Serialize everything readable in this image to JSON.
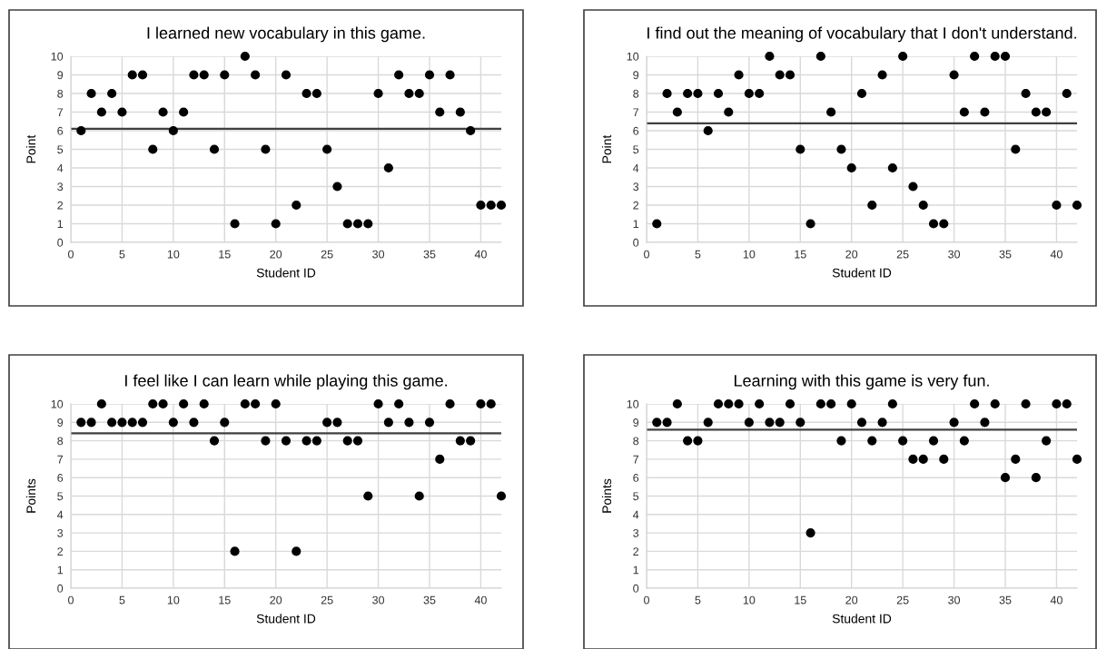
{
  "chart_data": [
    {
      "type": "scatter",
      "title": "I learned new vocabulary in this game.",
      "xlabel": "Student ID",
      "ylabel": "Point",
      "x": [
        1,
        2,
        3,
        4,
        5,
        6,
        7,
        8,
        9,
        10,
        11,
        12,
        13,
        14,
        15,
        16,
        17,
        18,
        19,
        20,
        21,
        22,
        23,
        24,
        25,
        26,
        27,
        28,
        29,
        30,
        31,
        32,
        33,
        34,
        35,
        36,
        37,
        38,
        39,
        40,
        41,
        42
      ],
      "series": [
        {
          "color": "#000000",
          "values": [
            6,
            8,
            7,
            8,
            7,
            9,
            9,
            5,
            7,
            6,
            7,
            9,
            9,
            5,
            9,
            1,
            10,
            9,
            5,
            1,
            9,
            2,
            8,
            8,
            5,
            3,
            1,
            1,
            1,
            8,
            4,
            9,
            8,
            8,
            9,
            7,
            9,
            7,
            6,
            2,
            2,
            2
          ]
        }
      ],
      "ref_lines": [
        {
          "axis": "y",
          "value": 6.1,
          "color": "#404040"
        }
      ],
      "xlim": [
        0,
        42
      ],
      "xticks": [
        0,
        5,
        10,
        15,
        20,
        25,
        30,
        35,
        40
      ],
      "ylim": [
        0,
        10
      ],
      "yticks": [
        0,
        1,
        2,
        3,
        4,
        5,
        6,
        7,
        8,
        9,
        10
      ],
      "grid": true,
      "marker": "circle"
    },
    {
      "type": "scatter",
      "title": "I find out the meaning of vocabulary that I don't understand.",
      "xlabel": "Student ID",
      "ylabel": "Point",
      "x": [
        1,
        2,
        3,
        4,
        5,
        6,
        7,
        8,
        9,
        10,
        11,
        12,
        13,
        14,
        15,
        16,
        17,
        18,
        19,
        20,
        21,
        22,
        23,
        24,
        25,
        26,
        27,
        28,
        29,
        30,
        31,
        32,
        33,
        34,
        35,
        36,
        37,
        38,
        39,
        40,
        41,
        42
      ],
      "series": [
        {
          "color": "#000000",
          "values": [
            1,
            8,
            7,
            8,
            8,
            6,
            8,
            7,
            9,
            8,
            8,
            10,
            9,
            9,
            5,
            1,
            10,
            7,
            5,
            4,
            8,
            2,
            9,
            4,
            10,
            3,
            2,
            1,
            1,
            9,
            7,
            10,
            7,
            10,
            10,
            5,
            8,
            7,
            7,
            2,
            8,
            2
          ]
        }
      ],
      "ref_lines": [
        {
          "axis": "y",
          "value": 6.4,
          "color": "#404040"
        }
      ],
      "xlim": [
        0,
        42
      ],
      "xticks": [
        0,
        5,
        10,
        15,
        20,
        25,
        30,
        35,
        40
      ],
      "ylim": [
        0,
        10
      ],
      "yticks": [
        0,
        1,
        2,
        3,
        4,
        5,
        6,
        7,
        8,
        9,
        10
      ],
      "grid": true,
      "marker": "circle"
    },
    {
      "type": "scatter",
      "title": "I feel like I can learn while playing this game.",
      "xlabel": "Student ID",
      "ylabel": "Points",
      "x": [
        1,
        2,
        3,
        4,
        5,
        6,
        7,
        8,
        9,
        10,
        11,
        12,
        13,
        14,
        15,
        16,
        17,
        18,
        19,
        20,
        21,
        22,
        23,
        24,
        25,
        26,
        27,
        28,
        29,
        30,
        31,
        32,
        33,
        34,
        35,
        36,
        37,
        38,
        39,
        40,
        41,
        42
      ],
      "series": [
        {
          "color": "#000000",
          "values": [
            9,
            9,
            10,
            9,
            9,
            9,
            9,
            10,
            10,
            9,
            10,
            9,
            10,
            8,
            9,
            2,
            10,
            10,
            8,
            10,
            8,
            2,
            8,
            8,
            9,
            9,
            8,
            8,
            5,
            10,
            9,
            10,
            9,
            5,
            9,
            7,
            10,
            8,
            8,
            10,
            10,
            5
          ]
        }
      ],
      "ref_lines": [
        {
          "axis": "y",
          "value": 8.4,
          "color": "#404040"
        }
      ],
      "xlim": [
        0,
        42
      ],
      "xticks": [
        0,
        5,
        10,
        15,
        20,
        25,
        30,
        35,
        40
      ],
      "ylim": [
        0,
        10
      ],
      "yticks": [
        0,
        1,
        2,
        3,
        4,
        5,
        6,
        7,
        8,
        9,
        10
      ],
      "grid": true,
      "marker": "circle"
    },
    {
      "type": "scatter",
      "title": "Learning with this game is very fun.",
      "xlabel": "Student ID",
      "ylabel": "Points",
      "x": [
        1,
        2,
        3,
        4,
        5,
        6,
        7,
        8,
        9,
        10,
        11,
        12,
        13,
        14,
        15,
        16,
        17,
        18,
        19,
        20,
        21,
        22,
        23,
        24,
        25,
        26,
        27,
        28,
        29,
        30,
        31,
        32,
        33,
        34,
        35,
        36,
        37,
        38,
        39,
        40,
        41,
        42
      ],
      "series": [
        {
          "color": "#000000",
          "values": [
            9,
            9,
            10,
            8,
            8,
            9,
            10,
            10,
            10,
            9,
            10,
            9,
            9,
            10,
            9,
            3,
            10,
            10,
            8,
            10,
            9,
            8,
            9,
            10,
            8,
            7,
            7,
            8,
            7,
            9,
            8,
            10,
            9,
            10,
            6,
            7,
            10,
            6,
            8,
            10,
            10,
            7
          ]
        }
      ],
      "ref_lines": [
        {
          "axis": "y",
          "value": 8.6,
          "color": "#404040"
        }
      ],
      "xlim": [
        0,
        42
      ],
      "xticks": [
        0,
        5,
        10,
        15,
        20,
        25,
        30,
        35,
        40
      ],
      "ylim": [
        0,
        10
      ],
      "yticks": [
        0,
        1,
        2,
        3,
        4,
        5,
        6,
        7,
        8,
        9,
        10
      ],
      "grid": true,
      "marker": "circle"
    }
  ]
}
